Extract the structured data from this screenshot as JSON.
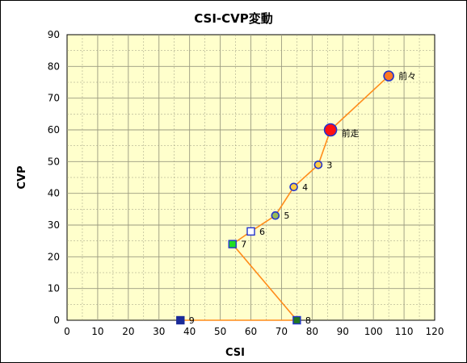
{
  "chart_data": {
    "type": "scatter",
    "title": "CSI-CVP変動",
    "xlabel": "CSI",
    "ylabel": "CVP",
    "xlim": [
      0,
      120
    ],
    "ylim": [
      0,
      90
    ],
    "x_ticks": [
      0,
      10,
      20,
      30,
      40,
      50,
      60,
      70,
      80,
      90,
      100,
      110,
      120
    ],
    "y_ticks": [
      0,
      10,
      20,
      30,
      40,
      50,
      60,
      70,
      80,
      90
    ],
    "grid": true,
    "colors": {
      "plot_background": "#ffffcc",
      "grid": "#9a9a80",
      "line": "#ff8c1a"
    },
    "line_order": [
      "9",
      "8",
      "7",
      "6",
      "5",
      "4",
      "3",
      "前走",
      "前々"
    ],
    "points": [
      {
        "label": "前々",
        "x": 105,
        "y": 77,
        "marker": "circle",
        "fill": "#ff7722",
        "stroke": "#2233cc",
        "size": "medium"
      },
      {
        "label": "前走",
        "x": 86,
        "y": 60,
        "marker": "circle",
        "fill": "#ff1111",
        "stroke": "#2233cc",
        "size": "large"
      },
      {
        "label": "3",
        "x": 82,
        "y": 49,
        "marker": "circle",
        "fill": "#ffcc44",
        "stroke": "#2233cc",
        "size": "small"
      },
      {
        "label": "4",
        "x": 74,
        "y": 42,
        "marker": "circle",
        "fill": "#ffcc44",
        "stroke": "#2233cc",
        "size": "small"
      },
      {
        "label": "5",
        "x": 68,
        "y": 33,
        "marker": "circle",
        "fill": "#99bb55",
        "stroke": "#2233cc",
        "size": "small"
      },
      {
        "label": "6",
        "x": 60,
        "y": 28,
        "marker": "square",
        "fill": "#ffffff",
        "stroke": "#2233cc",
        "size": "small"
      },
      {
        "label": "7",
        "x": 54,
        "y": 24,
        "marker": "square",
        "fill": "#22dd22",
        "stroke": "#2233cc",
        "size": "small"
      },
      {
        "label": "8",
        "x": 75,
        "y": 0,
        "marker": "square",
        "fill": "#227722",
        "stroke": "#2233cc",
        "size": "small"
      },
      {
        "label": "9",
        "x": 37,
        "y": 0,
        "marker": "square",
        "fill": "#1a2a99",
        "stroke": "#1a2a99",
        "size": "small"
      }
    ]
  }
}
